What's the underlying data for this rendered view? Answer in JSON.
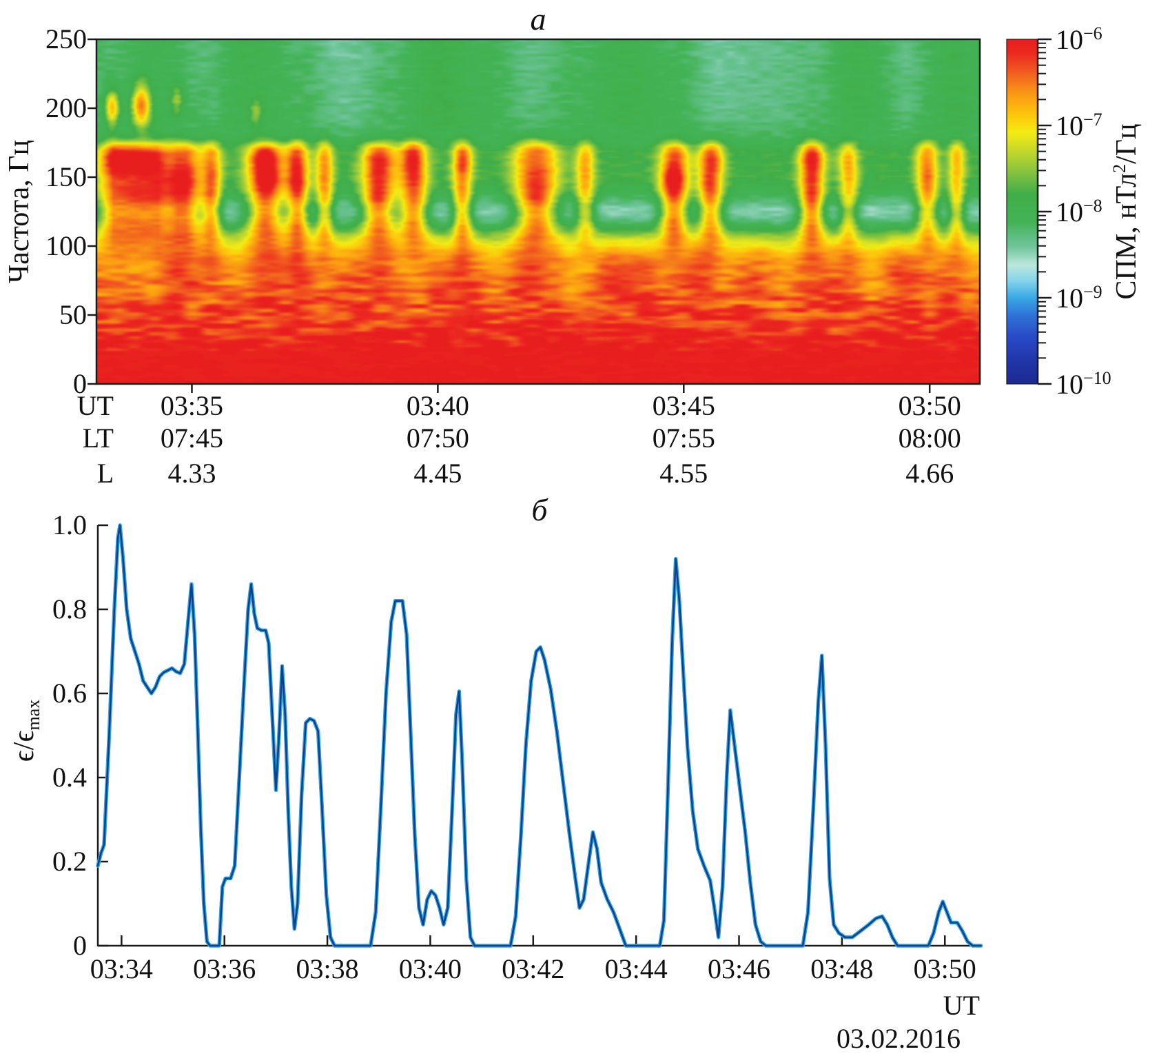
{
  "figure": {
    "panel_a_title": "а",
    "panel_b_title": "б"
  },
  "chart_data": [
    {
      "type": "heatmap",
      "panel": "а",
      "ylabel": "Частота, Гц",
      "y_ticks": [
        "0",
        "50",
        "100",
        "150",
        "200",
        "250"
      ],
      "y_tick_hz": [
        0,
        50,
        100,
        150,
        200,
        250
      ],
      "y_range_hz": [
        0,
        250
      ],
      "x_axis_rows": [
        {
          "header": "UT",
          "values": [
            "03:35",
            "03:40",
            "03:45",
            "03:50"
          ]
        },
        {
          "header": "LT",
          "values": [
            "07:45",
            "07:50",
            "07:55",
            "08:00"
          ]
        },
        {
          "header": "L",
          "values": [
            "4.33",
            "4.45",
            "4.55",
            "4.66"
          ]
        }
      ],
      "x_tick_times_min": [
        35,
        40,
        45,
        50
      ],
      "x_range_min": [
        33.06,
        51.02
      ],
      "colorbar": {
        "label_prefix": "СПМ, нТл",
        "label_sup": "2",
        "label_suffix": "/Гц",
        "tick_mantissa": "10",
        "tick_exponents": [
          "−6",
          "−7",
          "−8",
          "−9",
          "−10"
        ],
        "scale": "log10",
        "range": [
          "1e-10",
          "1e-6"
        ],
        "colormap_stops": [
          [
            0,
            "#1c2b8f"
          ],
          [
            0.07,
            "#2236ac"
          ],
          [
            0.14,
            "#2a4cc8"
          ],
          [
            0.2,
            "#2f74d8"
          ],
          [
            0.25,
            "#39a9e6"
          ],
          [
            0.3,
            "#86d5ec"
          ],
          [
            0.345,
            "#bce8dc"
          ],
          [
            0.4,
            "#6ec49a"
          ],
          [
            0.47,
            "#44b357"
          ],
          [
            0.55,
            "#3fae49"
          ],
          [
            0.62,
            "#8cc63f"
          ],
          [
            0.68,
            "#c9da2a"
          ],
          [
            0.73,
            "#f3ec13"
          ],
          [
            0.78,
            "#fdc70c"
          ],
          [
            0.84,
            "#fb9b14"
          ],
          [
            0.9,
            "#f2611f"
          ],
          [
            0.96,
            "#ec2a21"
          ],
          [
            1,
            "#e81e1e"
          ]
        ]
      },
      "base_spectrum_log10_by_hz": [
        [
          0,
          -6.0
        ],
        [
          28,
          -6.02
        ],
        [
          45,
          -6.22
        ],
        [
          60,
          -6.32
        ],
        [
          78,
          -6.45
        ],
        [
          92,
          -6.62
        ],
        [
          100,
          -6.85
        ],
        [
          112,
          -7.0
        ],
        [
          120,
          -7.18
        ],
        [
          128,
          -7.48
        ],
        [
          136,
          -7.68
        ],
        [
          145,
          -7.78
        ],
        [
          168,
          -7.82
        ],
        [
          174,
          -7.95
        ],
        [
          180,
          -8.08
        ],
        [
          250,
          -8.15
        ]
      ],
      "burst_band_hz": [
        131,
        174
      ],
      "emission_bursts_min_sigma_amp": [
        [
          33.5,
          0.28,
          1.0
        ],
        [
          34.15,
          0.3,
          1.0
        ],
        [
          34.85,
          0.26,
          0.95
        ],
        [
          35.4,
          0.14,
          0.75
        ],
        [
          36.5,
          0.26,
          1.0
        ],
        [
          37.15,
          0.16,
          0.9
        ],
        [
          37.7,
          0.13,
          0.7
        ],
        [
          38.8,
          0.24,
          0.95
        ],
        [
          39.5,
          0.2,
          0.95
        ],
        [
          40.5,
          0.14,
          0.8
        ],
        [
          42.0,
          0.3,
          0.95
        ],
        [
          43.0,
          0.14,
          0.6
        ],
        [
          44.8,
          0.2,
          1.0
        ],
        [
          45.55,
          0.18,
          0.85
        ],
        [
          47.6,
          0.18,
          0.95
        ],
        [
          48.35,
          0.14,
          0.55
        ],
        [
          49.95,
          0.16,
          0.7
        ],
        [
          50.55,
          0.12,
          0.6
        ]
      ],
      "high_freq_blobs_min_hz_sigt_sigf_amp": [
        [
          33.38,
          200,
          0.1,
          9,
          1.3
        ],
        [
          33.97,
          202,
          0.13,
          11,
          1.55
        ],
        [
          34.7,
          206,
          0.09,
          8,
          0.6
        ],
        [
          36.3,
          197,
          0.08,
          7,
          0.45
        ]
      ],
      "noise_seed": 7
    },
    {
      "type": "line",
      "panel": "б",
      "ylabel_main": "ϵ/ϵ",
      "ylabel_sub": "max",
      "xlabel": "UT",
      "date": "03.02.2016",
      "x_ticks": [
        "03:34",
        "03:36",
        "03:38",
        "03:40",
        "03:42",
        "03:44",
        "03:46",
        "03:48",
        "03:50"
      ],
      "x_tick_times_min": [
        34,
        36,
        38,
        40,
        42,
        44,
        46,
        48,
        50
      ],
      "y_ticks": [
        "0",
        "0.2",
        "0.4",
        "0.6",
        "0.8",
        "1.0"
      ],
      "y_tick_values": [
        0,
        0.2,
        0.4,
        0.6,
        0.8,
        1.0
      ],
      "y_range": [
        0,
        1
      ],
      "x_range_min": [
        33.54,
        50.72
      ],
      "line_color_core": "#123f8c",
      "line_color_glow": "#2fa8e0",
      "axis_color": "#1a1a1a",
      "points_min_value": [
        [
          33.54,
          0.19
        ],
        [
          33.6,
          0.22
        ],
        [
          33.66,
          0.24
        ],
        [
          33.76,
          0.5
        ],
        [
          33.86,
          0.8
        ],
        [
          33.93,
          0.97
        ],
        [
          33.97,
          1.0
        ],
        [
          34.03,
          0.92
        ],
        [
          34.1,
          0.8
        ],
        [
          34.18,
          0.73
        ],
        [
          34.26,
          0.7
        ],
        [
          34.34,
          0.67
        ],
        [
          34.42,
          0.63
        ],
        [
          34.5,
          0.615
        ],
        [
          34.58,
          0.6
        ],
        [
          34.66,
          0.615
        ],
        [
          34.74,
          0.64
        ],
        [
          34.82,
          0.65
        ],
        [
          34.9,
          0.655
        ],
        [
          34.98,
          0.66
        ],
        [
          35.06,
          0.652
        ],
        [
          35.14,
          0.648
        ],
        [
          35.22,
          0.67
        ],
        [
          35.3,
          0.78
        ],
        [
          35.36,
          0.86
        ],
        [
          35.42,
          0.74
        ],
        [
          35.48,
          0.52
        ],
        [
          35.54,
          0.28
        ],
        [
          35.6,
          0.1
        ],
        [
          35.66,
          0.01
        ],
        [
          35.72,
          0.0
        ],
        [
          35.9,
          0.0
        ],
        [
          35.96,
          0.14
        ],
        [
          36.02,
          0.16
        ],
        [
          36.12,
          0.16
        ],
        [
          36.2,
          0.19
        ],
        [
          36.28,
          0.38
        ],
        [
          36.38,
          0.62
        ],
        [
          36.46,
          0.8
        ],
        [
          36.52,
          0.86
        ],
        [
          36.58,
          0.79
        ],
        [
          36.64,
          0.755
        ],
        [
          36.72,
          0.75
        ],
        [
          36.8,
          0.75
        ],
        [
          36.86,
          0.72
        ],
        [
          36.94,
          0.52
        ],
        [
          37.0,
          0.37
        ],
        [
          37.06,
          0.5
        ],
        [
          37.12,
          0.665
        ],
        [
          37.18,
          0.55
        ],
        [
          37.24,
          0.32
        ],
        [
          37.3,
          0.14
        ],
        [
          37.36,
          0.04
        ],
        [
          37.42,
          0.1
        ],
        [
          37.5,
          0.36
        ],
        [
          37.58,
          0.53
        ],
        [
          37.66,
          0.54
        ],
        [
          37.74,
          0.535
        ],
        [
          37.82,
          0.51
        ],
        [
          37.9,
          0.32
        ],
        [
          37.98,
          0.12
        ],
        [
          38.06,
          0.02
        ],
        [
          38.14,
          0.0
        ],
        [
          38.84,
          0.0
        ],
        [
          38.94,
          0.08
        ],
        [
          39.04,
          0.33
        ],
        [
          39.14,
          0.6
        ],
        [
          39.24,
          0.77
        ],
        [
          39.32,
          0.82
        ],
        [
          39.46,
          0.82
        ],
        [
          39.54,
          0.74
        ],
        [
          39.62,
          0.5
        ],
        [
          39.7,
          0.26
        ],
        [
          39.78,
          0.09
        ],
        [
          39.86,
          0.05
        ],
        [
          39.94,
          0.11
        ],
        [
          40.02,
          0.13
        ],
        [
          40.1,
          0.12
        ],
        [
          40.18,
          0.09
        ],
        [
          40.26,
          0.05
        ],
        [
          40.34,
          0.09
        ],
        [
          40.42,
          0.31
        ],
        [
          40.5,
          0.55
        ],
        [
          40.56,
          0.605
        ],
        [
          40.62,
          0.44
        ],
        [
          40.7,
          0.16
        ],
        [
          40.78,
          0.02
        ],
        [
          40.86,
          0.0
        ],
        [
          41.56,
          0.0
        ],
        [
          41.66,
          0.07
        ],
        [
          41.76,
          0.26
        ],
        [
          41.86,
          0.48
        ],
        [
          41.96,
          0.63
        ],
        [
          42.06,
          0.7
        ],
        [
          42.14,
          0.71
        ],
        [
          42.22,
          0.68
        ],
        [
          42.34,
          0.61
        ],
        [
          42.46,
          0.51
        ],
        [
          42.58,
          0.39
        ],
        [
          42.7,
          0.27
        ],
        [
          42.82,
          0.16
        ],
        [
          42.9,
          0.09
        ],
        [
          42.98,
          0.11
        ],
        [
          43.08,
          0.2
        ],
        [
          43.16,
          0.27
        ],
        [
          43.24,
          0.23
        ],
        [
          43.32,
          0.15
        ],
        [
          43.44,
          0.11
        ],
        [
          43.56,
          0.08
        ],
        [
          43.68,
          0.04
        ],
        [
          43.8,
          0.0
        ],
        [
          44.46,
          0.0
        ],
        [
          44.54,
          0.06
        ],
        [
          44.62,
          0.38
        ],
        [
          44.7,
          0.72
        ],
        [
          44.77,
          0.92
        ],
        [
          44.84,
          0.82
        ],
        [
          44.92,
          0.64
        ],
        [
          45.0,
          0.47
        ],
        [
          45.1,
          0.32
        ],
        [
          45.2,
          0.23
        ],
        [
          45.32,
          0.19
        ],
        [
          45.44,
          0.155
        ],
        [
          45.52,
          0.09
        ],
        [
          45.6,
          0.02
        ],
        [
          45.68,
          0.14
        ],
        [
          45.76,
          0.4
        ],
        [
          45.83,
          0.56
        ],
        [
          45.92,
          0.47
        ],
        [
          46.02,
          0.37
        ],
        [
          46.12,
          0.27
        ],
        [
          46.22,
          0.15
        ],
        [
          46.32,
          0.05
        ],
        [
          46.42,
          0.01
        ],
        [
          46.52,
          0.0
        ],
        [
          47.24,
          0.0
        ],
        [
          47.34,
          0.08
        ],
        [
          47.44,
          0.32
        ],
        [
          47.54,
          0.58
        ],
        [
          47.61,
          0.69
        ],
        [
          47.68,
          0.48
        ],
        [
          47.76,
          0.16
        ],
        [
          47.84,
          0.05
        ],
        [
          47.94,
          0.03
        ],
        [
          48.06,
          0.02
        ],
        [
          48.2,
          0.02
        ],
        [
          48.36,
          0.035
        ],
        [
          48.52,
          0.05
        ],
        [
          48.66,
          0.065
        ],
        [
          48.78,
          0.07
        ],
        [
          48.88,
          0.05
        ],
        [
          48.98,
          0.02
        ],
        [
          49.08,
          0.0
        ],
        [
          49.68,
          0.0
        ],
        [
          49.78,
          0.03
        ],
        [
          49.88,
          0.08
        ],
        [
          49.96,
          0.105
        ],
        [
          50.04,
          0.08
        ],
        [
          50.12,
          0.055
        ],
        [
          50.24,
          0.055
        ],
        [
          50.34,
          0.035
        ],
        [
          50.44,
          0.01
        ],
        [
          50.54,
          0.0
        ],
        [
          50.7,
          0.0
        ]
      ]
    }
  ]
}
